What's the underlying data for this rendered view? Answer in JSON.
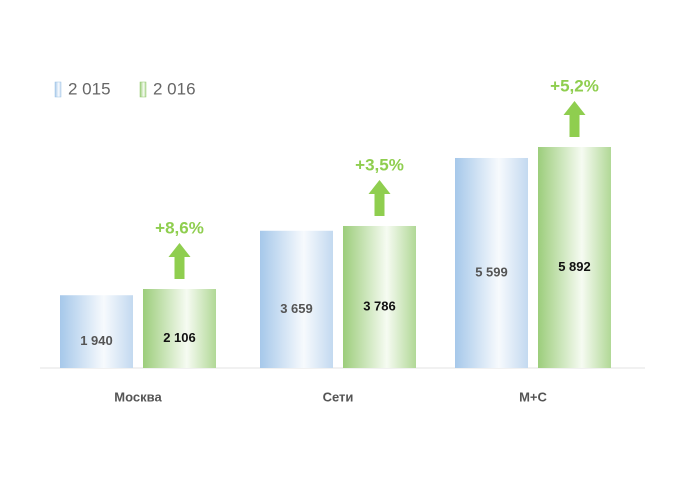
{
  "chart_data": {
    "type": "bar",
    "categories": [
      "Москва",
      "Сети",
      "М+С"
    ],
    "series": [
      {
        "name": "2 015",
        "color": "#9dc3e6",
        "values": [
          1940,
          3659,
          5599
        ],
        "value_labels": [
          "1 940",
          "3 659",
          "5 599"
        ]
      },
      {
        "name": "2 016",
        "color": "#92c96f",
        "values": [
          2106,
          3786,
          5892
        ],
        "value_labels": [
          "2 106",
          "3 786",
          "5 892"
        ]
      }
    ],
    "annotations": [
      "+8,6%",
      "+3,5%",
      "+5,2%"
    ],
    "legend": "top-left"
  }
}
